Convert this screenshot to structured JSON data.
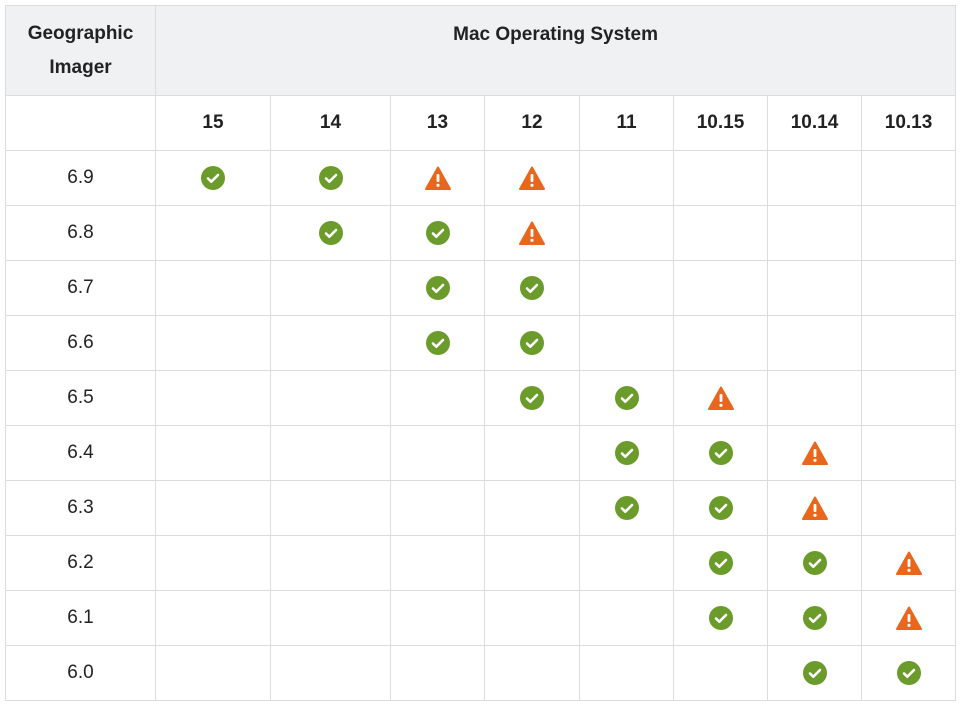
{
  "table": {
    "row_header": "Geographic Imager",
    "group_header": "Mac Operating System",
    "columns": [
      "15",
      "14",
      "13",
      "12",
      "11",
      "10.15",
      "10.14",
      "10.13"
    ],
    "rows": [
      "6.9",
      "6.8",
      "6.7",
      "6.6",
      "6.5",
      "6.4",
      "6.3",
      "6.2",
      "6.1",
      "6.0"
    ]
  }
}
